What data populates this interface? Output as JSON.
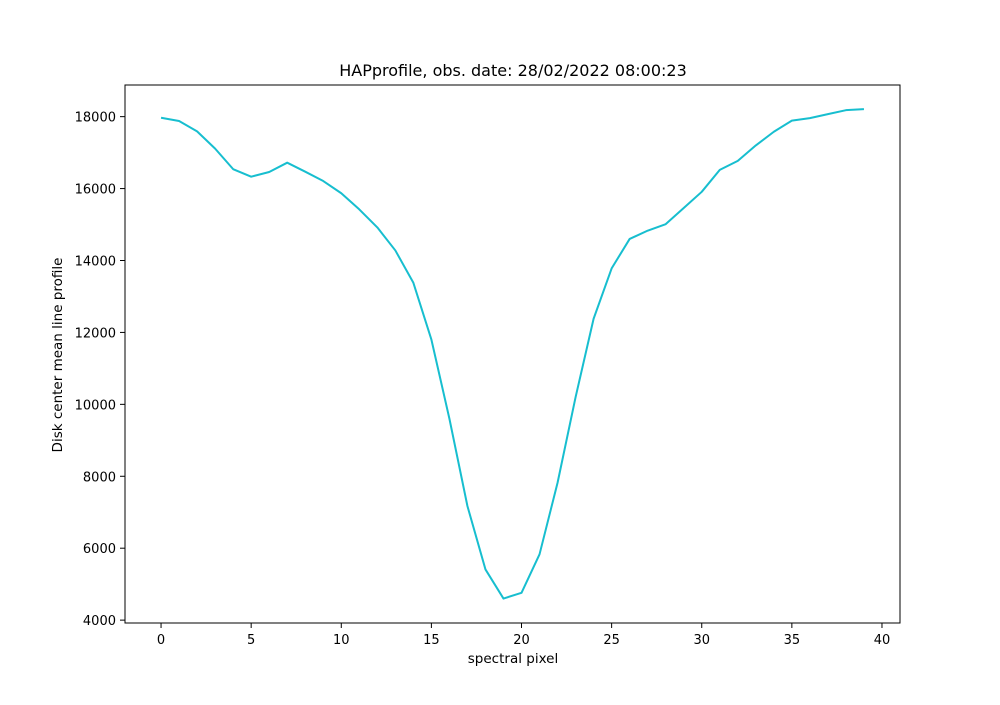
{
  "chart_data": {
    "type": "line",
    "title": "HAPprofile, obs. date: 28/02/2022 08:00:23",
    "xlabel": "spectral pixel",
    "ylabel": "Disk center mean line profile",
    "xlim": [
      -2,
      41
    ],
    "ylim": [
      3920,
      18880
    ],
    "xticks": [
      0,
      5,
      10,
      15,
      20,
      25,
      30,
      35,
      40
    ],
    "yticks": [
      4000,
      6000,
      8000,
      10000,
      12000,
      14000,
      16000,
      18000
    ],
    "xtick_labels": [
      "0",
      "5",
      "10",
      "15",
      "20",
      "25",
      "30",
      "35",
      "40"
    ],
    "ytick_labels": [
      "4000",
      "6000",
      "8000",
      "10000",
      "12000",
      "14000",
      "16000",
      "18000"
    ],
    "grid": false,
    "series": [
      {
        "color": "#17becf",
        "x": [
          0,
          1,
          2,
          3,
          4,
          5,
          6,
          7,
          8,
          9,
          10,
          11,
          12,
          13,
          14,
          15,
          16,
          17,
          18,
          19,
          20,
          21,
          22,
          23,
          24,
          25,
          26,
          27,
          28,
          29,
          30,
          31,
          32,
          33,
          34,
          35,
          36,
          37,
          38,
          39
        ],
        "y": [
          17970,
          17880,
          17590,
          17110,
          16540,
          16330,
          16460,
          16720,
          16470,
          16210,
          15870,
          15420,
          14920,
          14280,
          13380,
          11800,
          9600,
          7170,
          5410,
          4600,
          4760,
          5830,
          7820,
          10200,
          12380,
          13780,
          14600,
          14830,
          15010,
          15460,
          15910,
          16520,
          16770,
          17200,
          17580,
          17890,
          17960,
          18070,
          18180,
          18210
        ]
      }
    ]
  }
}
